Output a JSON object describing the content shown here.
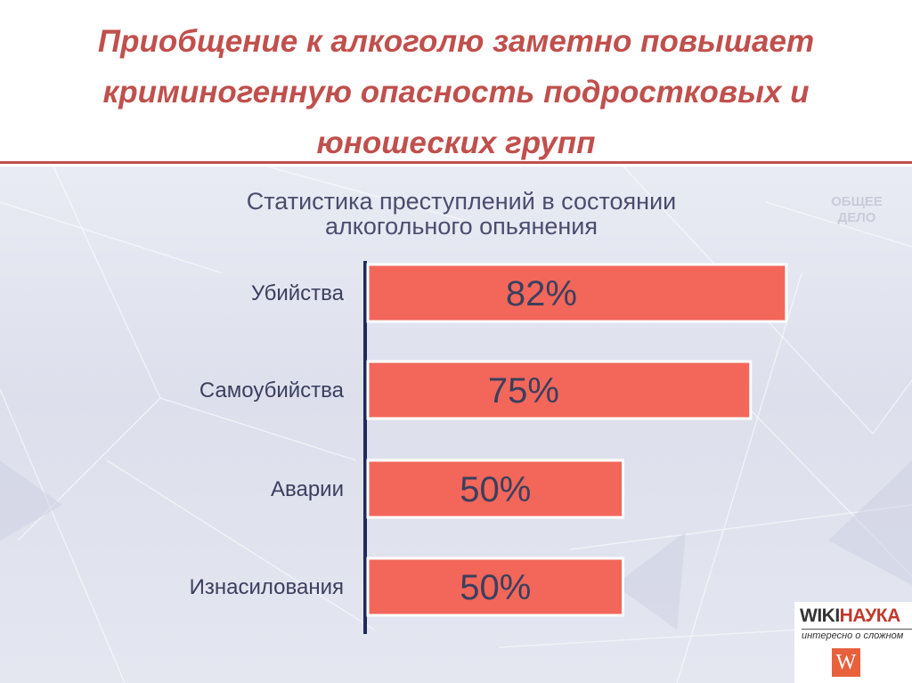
{
  "slide": {
    "title": "Приобщение к алкоголю заметно повышает криминогенную опасность подростковых и юношеских групп"
  },
  "channel_logo": {
    "line1": "ОБЩЕЕ",
    "line2": "ДЕЛО"
  },
  "wiki_logo": {
    "brand_part1": "WIKI",
    "brand_part2": "НАУКА",
    "tagline": "интересно о сложном",
    "icon": "W"
  },
  "colors": {
    "title_red": "#c0504d",
    "bar_fill": "#f2675a",
    "bar_edge": "#ffffff",
    "axis_line": "#1f2a5c",
    "text": "#3b3f5e"
  },
  "chart_data": {
    "type": "bar",
    "orientation": "horizontal",
    "title": "Статистика преступлений в состоянии алкогольного опьянения",
    "title_lines": [
      "Статистика преступлений в состоянии",
      "алкогольного опьянения"
    ],
    "categories": [
      "Убийства",
      "Самоубийства",
      "Аварии",
      "Изнасилования"
    ],
    "values": [
      82,
      75,
      50,
      50
    ],
    "value_labels": [
      "82%",
      "75%",
      "50%",
      "50%"
    ],
    "unit": "%",
    "xlim": [
      0,
      100
    ],
    "grid": false,
    "legend": "none"
  }
}
